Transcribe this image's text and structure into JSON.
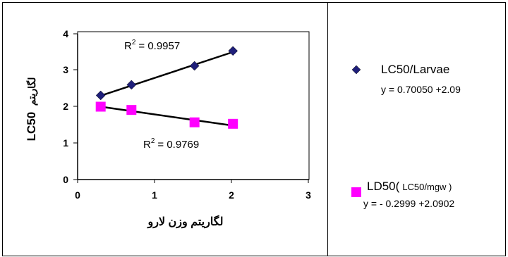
{
  "chart_data": {
    "type": "scatter",
    "xlabel": "لگاریتم وزن لارو",
    "ylabel_main": "LC50",
    "ylabel_prefix": "لگاریتم",
    "xlim": [
      0,
      3
    ],
    "ylim": [
      0,
      4
    ],
    "x_ticks": [
      "0",
      "1",
      "2",
      "3"
    ],
    "y_ticks": [
      "0",
      "1",
      "2",
      "3",
      "4"
    ],
    "grid": false,
    "legend_position": "right",
    "series": [
      {
        "name": "LC50/Larvae",
        "equation": "y = 0.70050 +2.09",
        "marker": "diamond",
        "color": "#1f1f7a",
        "x": [
          0.3,
          0.7,
          1.52,
          2.02
        ],
        "y": [
          2.31,
          2.6,
          3.12,
          3.53
        ],
        "trend": {
          "x": [
            0.3,
            2.02
          ],
          "y": [
            2.3,
            3.5
          ]
        },
        "r2_label": "= 0.9957",
        "r2_prefix": "R",
        "r2_exp": "2"
      },
      {
        "name_main": "LD50(",
        "name_sub": "LC50/mgw )",
        "equation": "y = - 0.2999 +2.0902",
        "marker": "square",
        "color": "#ff00ff",
        "x": [
          0.3,
          0.7,
          1.52,
          2.02
        ],
        "y": [
          2.0,
          1.91,
          1.57,
          1.53
        ],
        "trend": {
          "x": [
            0.3,
            2.02
          ],
          "y": [
            2.0,
            1.48
          ]
        },
        "r2_label": "= 0.9769",
        "r2_prefix": "R",
        "r2_exp": "2"
      }
    ]
  }
}
